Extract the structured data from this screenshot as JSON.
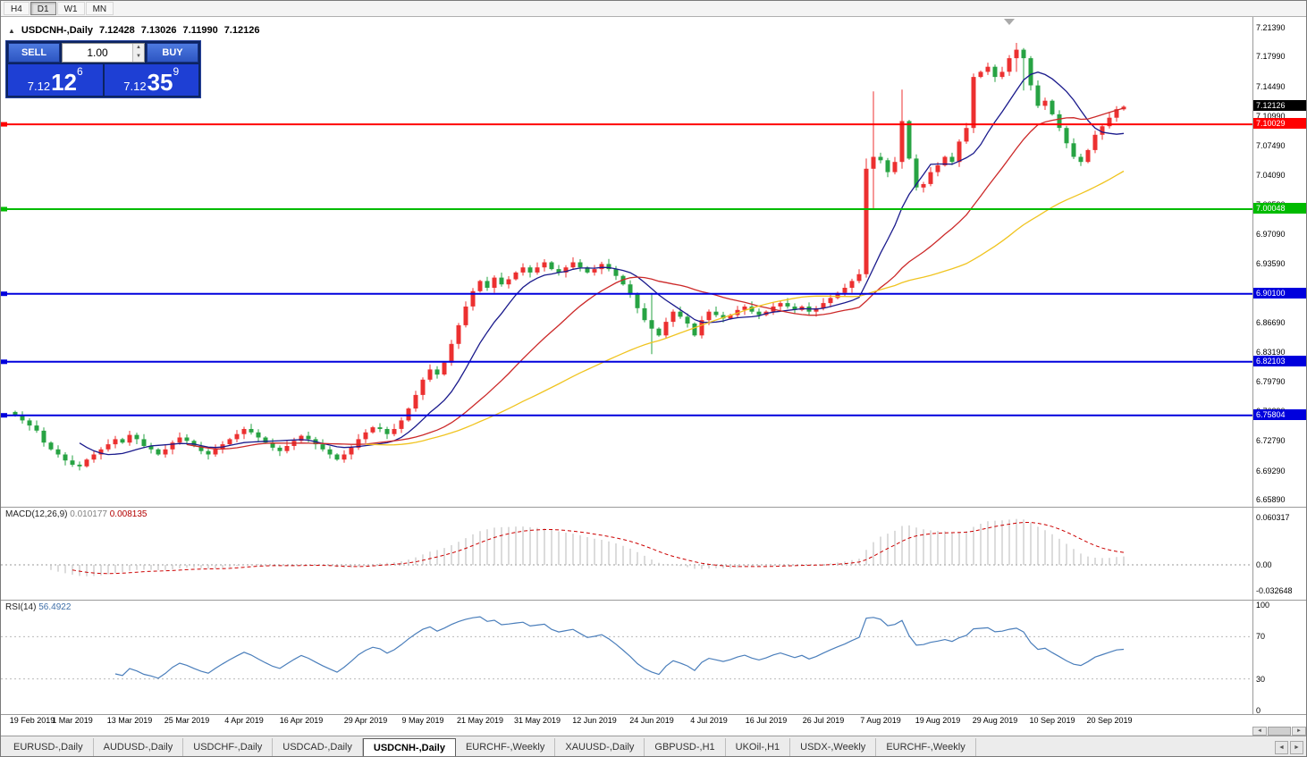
{
  "toolbar": {
    "timeframes": [
      {
        "label": "H4",
        "active": false
      },
      {
        "label": "D1",
        "active": true
      },
      {
        "label": "W1",
        "active": false
      },
      {
        "label": "MN",
        "active": false
      }
    ]
  },
  "chart_header": {
    "collapse_icon": "▲",
    "symbol": "USDCNH-,Daily",
    "open": "7.12428",
    "high": "7.13026",
    "low": "7.11990",
    "close": "7.12126"
  },
  "trade_panel": {
    "sell_label": "SELL",
    "buy_label": "BUY",
    "volume": "1.00",
    "sell_price": {
      "prefix": "7.12",
      "big": "12",
      "sup": "6"
    },
    "buy_price": {
      "prefix": "7.12",
      "big": "35",
      "sup": "9"
    }
  },
  "price_axis": {
    "labels": [
      "7.21390",
      "7.17990",
      "7.14490",
      "7.10990",
      "7.07490",
      "7.04090",
      "7.00590",
      "6.97090",
      "6.93590",
      "6.90090",
      "6.86690",
      "6.83190",
      "6.79790",
      "6.76290",
      "6.72790",
      "6.69290",
      "6.65890"
    ],
    "badges": [
      {
        "text": "7.12126",
        "price": 7.12126,
        "bg": "#000000",
        "fg": "#ffffff"
      },
      {
        "text": "7.10029",
        "price": 7.10029,
        "bg": "#ff0000",
        "fg": "#ffffff"
      },
      {
        "text": "7.00048",
        "price": 7.00048,
        "bg": "#00bb00",
        "fg": "#ffffff"
      },
      {
        "text": "6.90100",
        "price": 6.901,
        "bg": "#0000dd",
        "fg": "#ffffff"
      },
      {
        "text": "6.82103",
        "price": 6.82103,
        "bg": "#0000dd",
        "fg": "#ffffff"
      },
      {
        "text": "6.75804",
        "price": 6.75804,
        "bg": "#0000dd",
        "fg": "#ffffff"
      }
    ]
  },
  "hlines": [
    {
      "price": 7.10029,
      "color": "#ff0000"
    },
    {
      "price": 7.00048,
      "color": "#00bb00"
    },
    {
      "price": 6.901,
      "color": "#0000dd"
    },
    {
      "price": 6.82103,
      "color": "#0000dd"
    },
    {
      "price": 6.75804,
      "color": "#0000dd"
    }
  ],
  "macd": {
    "label": "MACD(12,26,9)",
    "value1": "0.010177",
    "value2": "0.008135",
    "axis": [
      {
        "text": "0.060317",
        "v": 0.060317
      },
      {
        "text": "0.00",
        "v": 0
      },
      {
        "text": "-0.032648",
        "v": -0.032648
      }
    ]
  },
  "rsi": {
    "label": "RSI(14)",
    "value": "56.4922",
    "axis": [
      {
        "text": "100",
        "v": 100
      },
      {
        "text": "70",
        "v": 70
      },
      {
        "text": "30",
        "v": 30
      },
      {
        "text": "0",
        "v": 0
      }
    ]
  },
  "chart_data": {
    "type": "candlestick",
    "symbol": "USDCNH",
    "timeframe": "Daily",
    "y_range": [
      6.645,
      7.2265
    ],
    "up_color": "#ec3030",
    "down_color": "#27a343",
    "ma": [
      {
        "period": 10,
        "color": "#1a1a8c"
      },
      {
        "period": 25,
        "color": "#cc2929"
      },
      {
        "period": 50,
        "color": "#f0c420"
      }
    ],
    "closes": [
      6.758,
      6.752,
      6.746,
      6.74,
      6.726,
      6.718,
      6.712,
      6.705,
      6.7,
      6.698,
      6.706,
      6.712,
      6.718,
      6.724,
      6.73,
      6.726,
      6.735,
      6.73,
      6.722,
      6.718,
      6.712,
      6.718,
      6.726,
      6.732,
      6.728,
      6.722,
      6.716,
      6.712,
      6.718,
      6.724,
      6.73,
      6.736,
      6.742,
      6.738,
      6.732,
      6.726,
      6.72,
      6.716,
      6.722,
      6.728,
      6.734,
      6.73,
      6.724,
      6.718,
      6.712,
      6.706,
      6.712,
      6.72,
      6.73,
      6.738,
      6.744,
      6.742,
      6.736,
      6.742,
      6.752,
      6.766,
      6.782,
      6.8,
      6.812,
      6.806,
      6.82,
      6.842,
      6.864,
      6.886,
      6.904,
      6.916,
      6.908,
      6.92,
      6.912,
      6.918,
      6.926,
      6.932,
      6.926,
      6.932,
      6.938,
      6.93,
      6.926,
      6.932,
      6.938,
      6.932,
      6.926,
      6.93,
      6.936,
      6.93,
      6.922,
      6.912,
      6.9,
      6.884,
      6.87,
      6.86,
      6.852,
      6.868,
      6.88,
      6.874,
      6.866,
      6.852,
      6.87,
      6.88,
      6.876,
      6.872,
      6.876,
      6.882,
      6.886,
      6.88,
      6.876,
      6.88,
      6.886,
      6.89,
      6.886,
      6.882,
      6.886,
      6.88,
      6.884,
      6.89,
      6.896,
      6.902,
      6.908,
      6.916,
      6.924,
      7.048,
      7.062,
      7.058,
      7.044,
      7.056,
      7.104,
      7.06,
      7.026,
      7.03,
      7.044,
      7.052,
      7.062,
      7.056,
      7.08,
      7.096,
      7.156,
      7.162,
      7.168,
      7.156,
      7.162,
      7.178,
      7.188,
      7.178,
      7.146,
      7.122,
      7.128,
      7.112,
      7.096,
      7.078,
      7.062,
      7.056,
      7.07,
      7.088,
      7.098,
      7.108,
      7.118,
      7.121
    ],
    "wick_overrides": {
      "89": [
        6.902,
        6.83
      ],
      "119": [
        7.06,
        6.92
      ],
      "120": [
        7.139,
        7.0
      ],
      "124": [
        7.141,
        7.048
      ],
      "134": [
        7.16,
        7.09
      ],
      "140": [
        7.196,
        7.162
      ],
      "141": [
        7.19,
        7.14
      ]
    },
    "date_ticks": [
      {
        "label": "19 Feb 2019",
        "i": 0
      },
      {
        "label": "1 Mar 2019",
        "i": 8
      },
      {
        "label": "13 Mar 2019",
        "i": 16
      },
      {
        "label": "25 Mar 2019",
        "i": 24
      },
      {
        "label": "4 Apr 2019",
        "i": 32
      },
      {
        "label": "16 Apr 2019",
        "i": 40
      },
      {
        "label": "29 Apr 2019",
        "i": 49
      },
      {
        "label": "9 May 2019",
        "i": 57
      },
      {
        "label": "21 May 2019",
        "i": 65
      },
      {
        "label": "31 May 2019",
        "i": 73
      },
      {
        "label": "12 Jun 2019",
        "i": 81
      },
      {
        "label": "24 Jun 2019",
        "i": 89
      },
      {
        "label": "4 Jul 2019",
        "i": 97
      },
      {
        "label": "16 Jul 2019",
        "i": 105
      },
      {
        "label": "26 Jul 2019",
        "i": 113
      },
      {
        "label": "7 Aug 2019",
        "i": 121
      },
      {
        "label": "19 Aug 2019",
        "i": 129
      },
      {
        "label": "29 Aug 2019",
        "i": 137
      },
      {
        "label": "10 Sep 2019",
        "i": 145
      },
      {
        "label": "20 Sep 2019",
        "i": 153
      }
    ]
  },
  "tabs": {
    "items": [
      "EURUSD-,Daily",
      "AUDUSD-,Daily",
      "USDCHF-,Daily",
      "USDCAD-,Daily",
      "USDCNH-,Daily",
      "EURCHF-,Weekly",
      "XAUUSD-,Daily",
      "GBPUSD-,H1",
      "UKOil-,H1",
      "USDX-,Weekly",
      "EURCHF-,Weekly"
    ],
    "active_index": 4
  }
}
